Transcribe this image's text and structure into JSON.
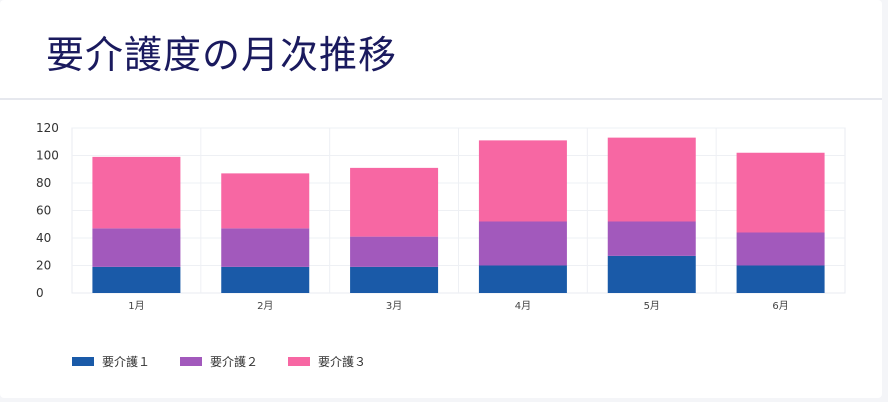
{
  "page": {
    "title": "要介護度の月次推移"
  },
  "chart_data": {
    "type": "bar",
    "stacked": true,
    "categories": [
      "1月",
      "2月",
      "3月",
      "4月",
      "5月",
      "6月"
    ],
    "series": [
      {
        "name": "要介護１",
        "color": "#1a5aa8",
        "values": [
          19,
          19,
          19,
          20,
          27,
          20
        ]
      },
      {
        "name": "要介護２",
        "color": "#a259bc",
        "values": [
          28,
          28,
          22,
          32,
          25,
          24
        ]
      },
      {
        "name": "要介護３",
        "color": "#f767a3",
        "values": [
          52,
          40,
          50,
          59,
          61,
          58
        ]
      }
    ],
    "ylim": [
      0,
      120
    ],
    "yticks": [
      0,
      20,
      40,
      60,
      80,
      100,
      120
    ],
    "grid": true,
    "legend": "bottom-left"
  }
}
